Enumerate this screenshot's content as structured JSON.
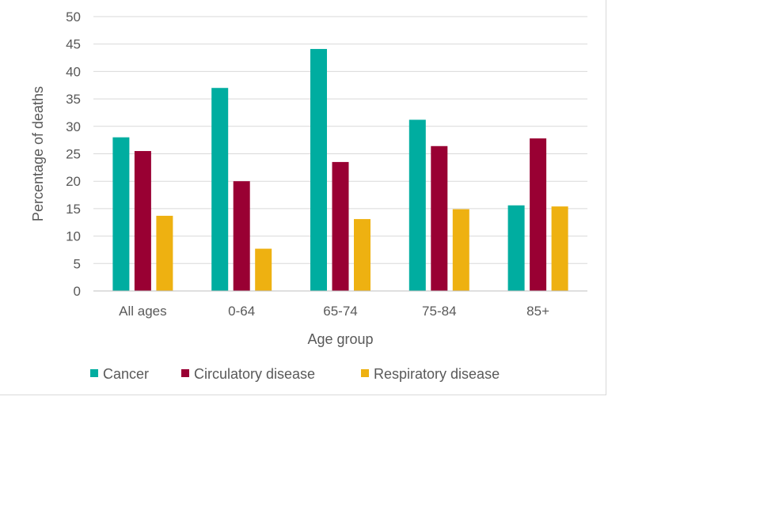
{
  "chart_data": {
    "type": "bar",
    "title": "",
    "xlabel": "Age group",
    "ylabel": "Percentage of deaths",
    "categories": [
      "All ages",
      "0-64",
      "65-74",
      "75-84",
      "85+"
    ],
    "ylim": [
      0,
      50
    ],
    "yticks": [
      0,
      5,
      10,
      15,
      20,
      25,
      30,
      35,
      40,
      45,
      50
    ],
    "grid": true,
    "legend_position": "bottom",
    "series": [
      {
        "name": "Cancer",
        "color": "#00ada0",
        "values": [
          28.0,
          37.0,
          44.1,
          31.2,
          15.6
        ]
      },
      {
        "name": "Circulatory disease",
        "color": "#990033",
        "values": [
          25.5,
          20.0,
          23.5,
          26.4,
          27.8
        ]
      },
      {
        "name": "Respiratory disease",
        "color": "#eeb111",
        "values": [
          13.7,
          7.7,
          13.1,
          14.9,
          15.4
        ]
      }
    ]
  }
}
